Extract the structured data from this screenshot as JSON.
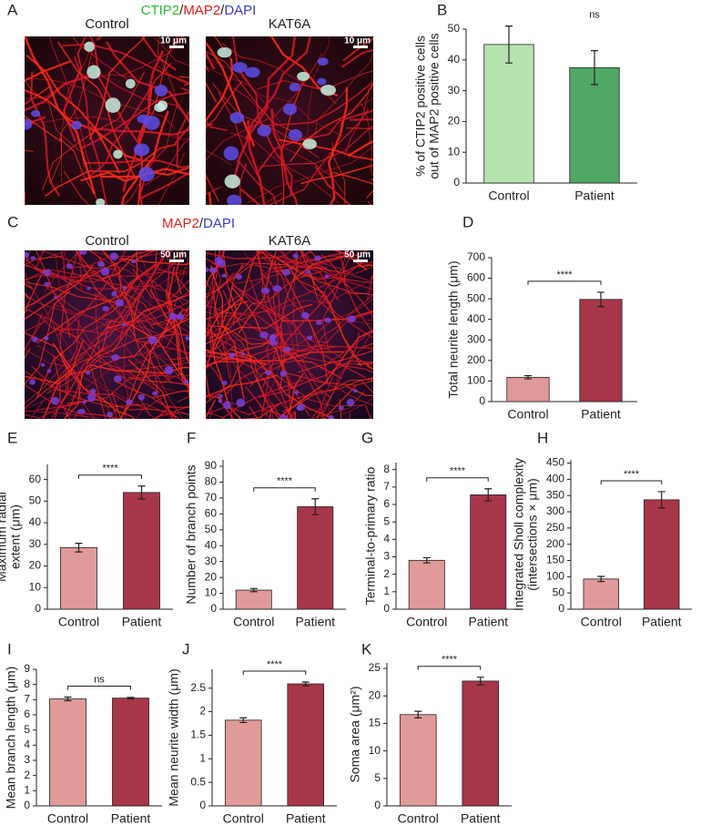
{
  "images": [
    {
      "panel": "A",
      "title_parts": [
        "CTIP2",
        "/",
        "MAP2",
        "/",
        "DAPI"
      ],
      "title_colors": [
        "#2db82d",
        "#222222",
        "#e0201e",
        "#222222",
        "#3a3ad0"
      ],
      "labels": [
        "Control",
        "KAT6A"
      ],
      "scale_bar": "10 μm"
    },
    {
      "panel": "C",
      "title_parts": [
        "MAP2",
        "/",
        "DAPI"
      ],
      "title_colors": [
        "#e0201e",
        "#222222",
        "#3a3ad0"
      ],
      "labels": [
        "Control",
        "KAT6A"
      ],
      "scale_bar": "50 μm"
    }
  ],
  "chart_data": [
    {
      "type": "bar",
      "panel": "B",
      "ylabel": [
        "% of CTIP2 positive cells",
        "out of MAP2 positive cells"
      ],
      "categories": [
        "Control",
        "Patient"
      ],
      "values": [
        45,
        37.5
      ],
      "errors": [
        6,
        5.5
      ],
      "colors": [
        "#b6e2b0",
        "#4fa865"
      ],
      "ylim": [
        0,
        50
      ],
      "yticks": [
        0,
        10,
        20,
        30,
        40,
        50
      ],
      "significance": "ns",
      "bracket": false
    },
    {
      "type": "bar",
      "panel": "D",
      "ylabel": [
        "Total neurite length (μm)"
      ],
      "categories": [
        "Control",
        "Patient"
      ],
      "values": [
        118,
        497
      ],
      "errors": [
        8,
        35
      ],
      "colors": [
        "#e09a9a",
        "#a8364a"
      ],
      "ylim": [
        0,
        700
      ],
      "yticks": [
        0,
        100,
        200,
        300,
        400,
        500,
        600,
        700
      ],
      "significance": "****",
      "bracket": true
    },
    {
      "type": "bar",
      "panel": "E",
      "ylabel": [
        "Maximum radial",
        "extent (μm)"
      ],
      "categories": [
        "Control",
        "Patient"
      ],
      "values": [
        28.5,
        54
      ],
      "errors": [
        2,
        3
      ],
      "colors": [
        "#e09a9a",
        "#a8364a"
      ],
      "ylim": [
        0,
        67
      ],
      "yticks": [
        0,
        10,
        20,
        30,
        40,
        50,
        60
      ],
      "significance": "****",
      "bracket": true
    },
    {
      "type": "bar",
      "panel": "F",
      "ylabel": [
        "Number of branch points"
      ],
      "categories": [
        "Control",
        "Patient"
      ],
      "values": [
        12,
        64.5
      ],
      "errors": [
        1,
        5
      ],
      "colors": [
        "#e09a9a",
        "#a8364a"
      ],
      "ylim": [
        0,
        94
      ],
      "yticks": [
        0,
        10,
        20,
        30,
        40,
        50,
        60,
        70,
        80,
        90
      ],
      "significance": "****",
      "bracket": true
    },
    {
      "type": "bar",
      "panel": "G",
      "ylabel": [
        "Terminal-to-primary ratio"
      ],
      "categories": [
        "Control",
        "Patient"
      ],
      "values": [
        2.8,
        6.55
      ],
      "errors": [
        0.15,
        0.35
      ],
      "colors": [
        "#e09a9a",
        "#a8364a"
      ],
      "ylim": [
        0,
        8.4
      ],
      "yticks": [
        0,
        1,
        2,
        3,
        4,
        5,
        6,
        7,
        8
      ],
      "significance": "****",
      "bracket": true
    },
    {
      "type": "bar",
      "panel": "H",
      "ylabel": [
        "Integrated Sholl complexity",
        "(intersections × μm)"
      ],
      "categories": [
        "Control",
        "Patient"
      ],
      "values": [
        93,
        337
      ],
      "errors": [
        8,
        25
      ],
      "colors": [
        "#e09a9a",
        "#a8364a"
      ],
      "ylim": [
        0,
        460
      ],
      "yticks": [
        0,
        50,
        100,
        150,
        200,
        250,
        300,
        350,
        400,
        450
      ],
      "significance": "****",
      "bracket": true
    },
    {
      "type": "bar",
      "panel": "I",
      "ylabel": [
        "Mean branch length (μm)"
      ],
      "categories": [
        "Control",
        "Patient"
      ],
      "values": [
        7.05,
        7.1
      ],
      "errors": [
        0.12,
        0.05
      ],
      "colors": [
        "#e09a9a",
        "#a8364a"
      ],
      "ylim": [
        0,
        9
      ],
      "yticks": [
        0,
        1,
        2,
        3,
        4,
        5,
        6,
        7,
        8,
        9
      ],
      "significance": "ns",
      "bracket": true
    },
    {
      "type": "bar",
      "panel": "J",
      "ylabel": [
        "Mean neurite width (μm)"
      ],
      "categories": [
        "Control",
        "Patient"
      ],
      "values": [
        1.82,
        2.59
      ],
      "errors": [
        0.05,
        0.04
      ],
      "colors": [
        "#e09a9a",
        "#a8364a"
      ],
      "ylim": [
        0,
        2.9
      ],
      "yticks": [
        0,
        0.5,
        1,
        1.5,
        2,
        2.5
      ],
      "significance": "****",
      "bracket": true
    },
    {
      "type": "bar",
      "panel": "K",
      "ylabel": [
        "Soma area (μm²)"
      ],
      "categories": [
        "Control",
        "Patient"
      ],
      "values": [
        16.6,
        22.7
      ],
      "errors": [
        0.6,
        0.7
      ],
      "colors": [
        "#e09a9a",
        "#a8364a"
      ],
      "ylim": [
        0,
        26
      ],
      "yticks": [
        0,
        5,
        10,
        15,
        20,
        25
      ],
      "significance": "****",
      "bracket": true
    }
  ]
}
